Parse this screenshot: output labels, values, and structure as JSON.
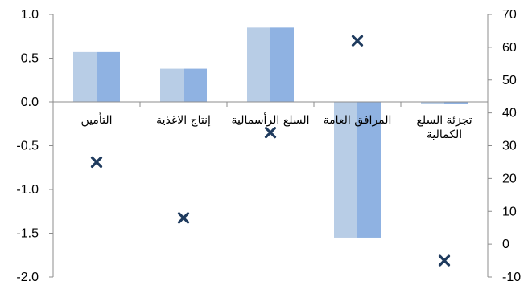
{
  "chart_data": {
    "type": "bar",
    "categories": [
      [
        "التأمين"
      ],
      [
        "إنتاج الاغذية"
      ],
      [
        "السلع الرأسمالية"
      ],
      [
        "المرافق العامة"
      ],
      [
        "تجزئة السلع",
        "الكمالية"
      ]
    ],
    "series": [
      {
        "values": [
          0.57,
          0.38,
          0.85,
          -1.55,
          -0.02
        ],
        "color": "#b8cde6",
        "axis": "left",
        "mark": "bar"
      },
      {
        "values": [
          0.57,
          0.38,
          0.85,
          -1.55,
          -0.02
        ],
        "color": "#8fb2e2",
        "axis": "left",
        "mark": "bar"
      },
      {
        "values": [
          25,
          8,
          34,
          62,
          -5
        ],
        "color": "#1f3b5e",
        "axis": "right",
        "mark": "x-marker"
      }
    ],
    "left_axis": {
      "ylim": [
        -2.0,
        1.0
      ],
      "ticks": [
        "1.0",
        "0.5",
        "0.0",
        "-0.5",
        "-1.0",
        "-1.5",
        "-2.0"
      ]
    },
    "right_axis": {
      "ylim": [
        -10,
        70
      ],
      "ticks": [
        "70",
        "60",
        "50",
        "40",
        "30",
        "20",
        "10",
        "0",
        "-10"
      ]
    },
    "grid": false,
    "legend": "none"
  }
}
